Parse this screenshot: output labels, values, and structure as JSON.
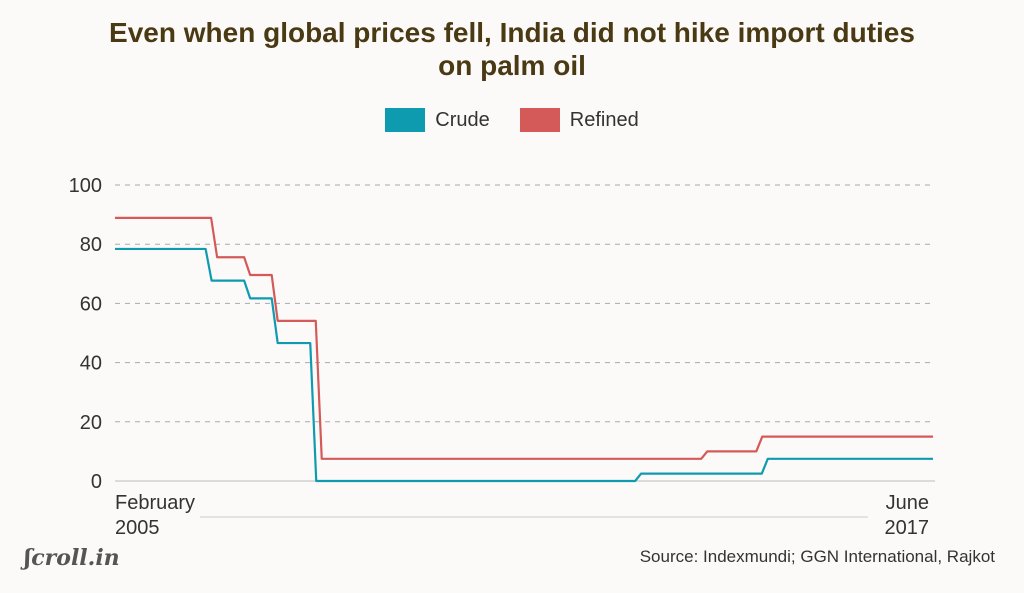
{
  "title_line1": "Even when global prices fell, India did not hike import duties",
  "title_line2": "on palm oil",
  "source": "Source: Indexmundi; GGN International, Rajkot",
  "logo": "Scroll.in",
  "colors": {
    "crude": "#0e9bb0",
    "refined": "#d45a5a",
    "grid": "#aaaaaa",
    "title": "#4a3a14"
  },
  "chart_data": {
    "type": "line",
    "step": true,
    "x_start_label": [
      "February",
      "2005"
    ],
    "x_end_label": [
      "June",
      "2017"
    ],
    "x_months_range": [
      0,
      148
    ],
    "ylim": [
      0,
      100
    ],
    "yticks": [
      0,
      20,
      40,
      60,
      80,
      100
    ],
    "grid": true,
    "legend_position": "top-center",
    "series": [
      {
        "name": "Crude",
        "color": "#0e9bb0",
        "points": [
          [
            0,
            78.4
          ],
          [
            17,
            67.7
          ],
          [
            24,
            61.7
          ],
          [
            29,
            46.6
          ],
          [
            36,
            0
          ],
          [
            95,
            2.5
          ],
          [
            118,
            7.5
          ],
          [
            148,
            7.5
          ]
        ]
      },
      {
        "name": "Refined",
        "color": "#d45a5a",
        "points": [
          [
            0,
            88.9
          ],
          [
            18,
            75.6
          ],
          [
            24,
            69.6
          ],
          [
            29,
            54.1
          ],
          [
            37,
            7.5
          ],
          [
            107,
            10
          ],
          [
            117,
            15
          ],
          [
            148,
            15
          ]
        ]
      }
    ]
  }
}
